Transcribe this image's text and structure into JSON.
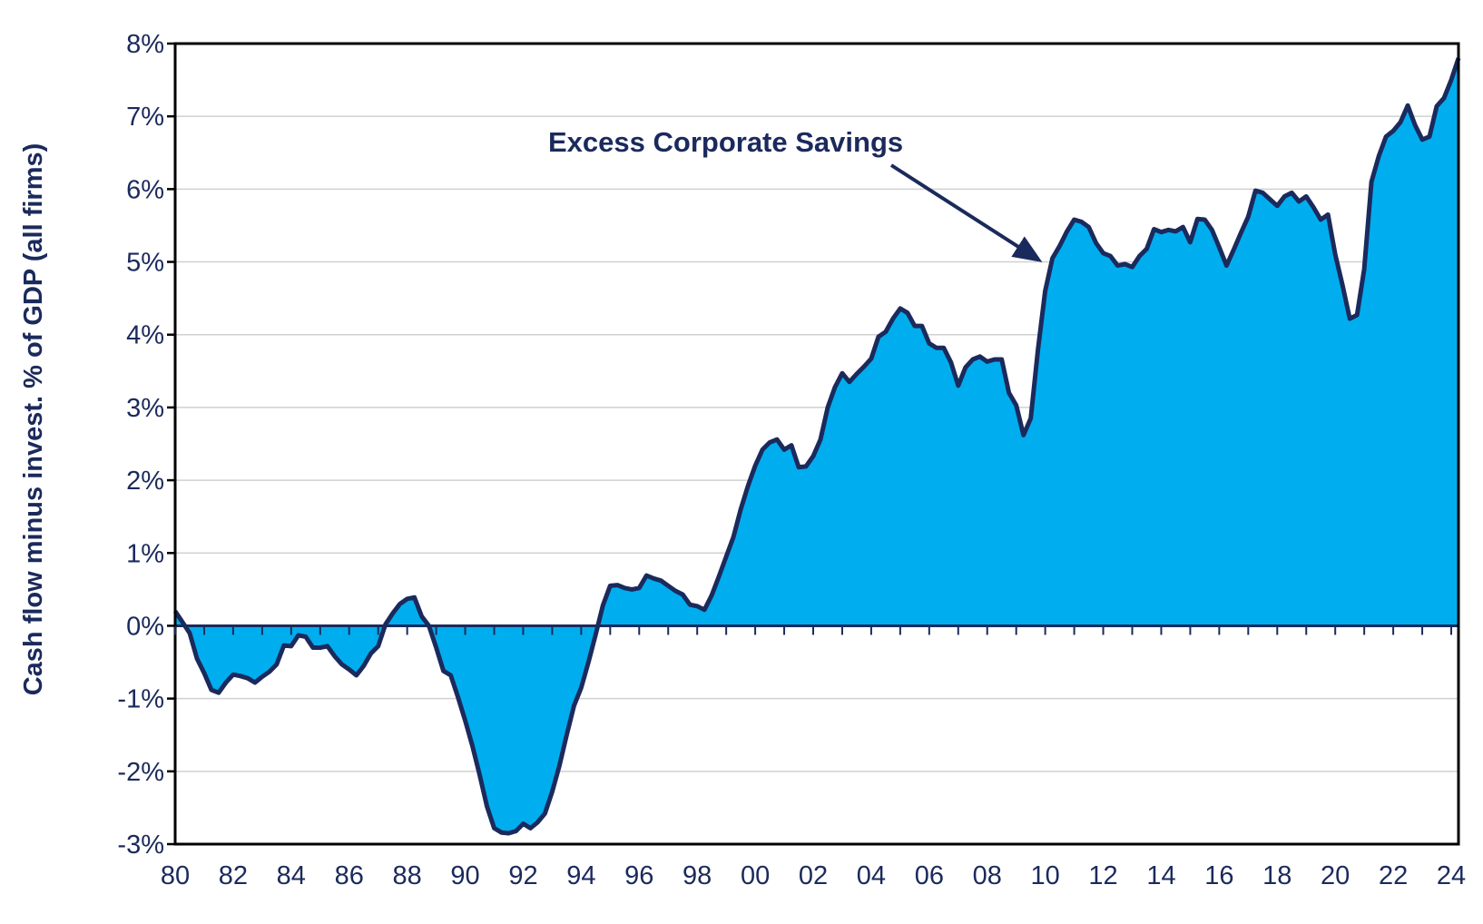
{
  "chart_data": {
    "type": "area",
    "title": "",
    "xlabel": "",
    "ylabel": "Cash flow minus invest. % of  GDP (all firms)",
    "ylim": [
      -3,
      8
    ],
    "xlim": [
      1980,
      2024.25
    ],
    "yticks": [
      -3,
      -2,
      -1,
      0,
      1,
      2,
      3,
      4,
      5,
      6,
      7,
      8
    ],
    "ytick_labels": [
      "-3%",
      "-2%",
      "-1%",
      "0%",
      "1%",
      "2%",
      "3%",
      "4%",
      "5%",
      "6%",
      "7%",
      "8%"
    ],
    "xticks": [
      1980,
      1982,
      1984,
      1986,
      1988,
      1990,
      1992,
      1994,
      1996,
      1998,
      2000,
      2002,
      2004,
      2006,
      2008,
      2010,
      2012,
      2014,
      2016,
      2018,
      2020,
      2022,
      2024
    ],
    "xtick_labels": [
      "80",
      "82",
      "84",
      "86",
      "88",
      "90",
      "92",
      "94",
      "96",
      "98",
      "00",
      "02",
      "04",
      "06",
      "08",
      "10",
      "12",
      "14",
      "16",
      "18",
      "20",
      "22",
      "24"
    ],
    "grid": true,
    "annotation": "Excess Corporate Savings",
    "series": [
      {
        "name": "Excess Corporate Savings",
        "color": "#00aeef",
        "line_color": "#1b2a5c",
        "points": [
          [
            1980.0,
            0.2
          ],
          [
            1980.25,
            0.05
          ],
          [
            1980.5,
            -0.1
          ],
          [
            1980.75,
            -0.45
          ],
          [
            1981.0,
            -0.65
          ],
          [
            1981.25,
            -0.88
          ],
          [
            1981.5,
            -0.92
          ],
          [
            1981.75,
            -0.78
          ],
          [
            1982.0,
            -0.67
          ],
          [
            1982.25,
            -0.69
          ],
          [
            1982.5,
            -0.72
          ],
          [
            1982.75,
            -0.78
          ],
          [
            1983.0,
            -0.7
          ],
          [
            1983.25,
            -0.63
          ],
          [
            1983.5,
            -0.53
          ],
          [
            1983.75,
            -0.27
          ],
          [
            1984.0,
            -0.28
          ],
          [
            1984.25,
            -0.13
          ],
          [
            1984.5,
            -0.15
          ],
          [
            1984.75,
            -0.3
          ],
          [
            1985.0,
            -0.3
          ],
          [
            1985.25,
            -0.28
          ],
          [
            1985.5,
            -0.42
          ],
          [
            1985.75,
            -0.53
          ],
          [
            1986.0,
            -0.6
          ],
          [
            1986.25,
            -0.68
          ],
          [
            1986.5,
            -0.55
          ],
          [
            1986.75,
            -0.38
          ],
          [
            1987.0,
            -0.28
          ],
          [
            1987.25,
            0.02
          ],
          [
            1987.5,
            0.17
          ],
          [
            1987.75,
            0.3
          ],
          [
            1988.0,
            0.37
          ],
          [
            1988.25,
            0.39
          ],
          [
            1988.5,
            0.13
          ],
          [
            1988.75,
            0.0
          ],
          [
            1989.0,
            -0.3
          ],
          [
            1989.25,
            -0.62
          ],
          [
            1989.5,
            -0.68
          ],
          [
            1989.75,
            -0.98
          ],
          [
            1990.0,
            -1.3
          ],
          [
            1990.25,
            -1.65
          ],
          [
            1990.5,
            -2.05
          ],
          [
            1990.75,
            -2.48
          ],
          [
            1991.0,
            -2.78
          ],
          [
            1991.25,
            -2.84
          ],
          [
            1991.5,
            -2.85
          ],
          [
            1991.75,
            -2.82
          ],
          [
            1992.0,
            -2.72
          ],
          [
            1992.25,
            -2.78
          ],
          [
            1992.5,
            -2.7
          ],
          [
            1992.75,
            -2.58
          ],
          [
            1993.0,
            -2.28
          ],
          [
            1993.25,
            -1.92
          ],
          [
            1993.5,
            -1.5
          ],
          [
            1993.75,
            -1.1
          ],
          [
            1994.0,
            -0.85
          ],
          [
            1994.25,
            -0.5
          ],
          [
            1994.5,
            -0.12
          ],
          [
            1994.75,
            0.28
          ],
          [
            1995.0,
            0.55
          ],
          [
            1995.25,
            0.56
          ],
          [
            1995.5,
            0.52
          ],
          [
            1995.75,
            0.5
          ],
          [
            1996.0,
            0.52
          ],
          [
            1996.25,
            0.69
          ],
          [
            1996.5,
            0.65
          ],
          [
            1996.75,
            0.62
          ],
          [
            1997.0,
            0.55
          ],
          [
            1997.25,
            0.48
          ],
          [
            1997.5,
            0.43
          ],
          [
            1997.75,
            0.29
          ],
          [
            1998.0,
            0.27
          ],
          [
            1998.25,
            0.22
          ],
          [
            1998.5,
            0.42
          ],
          [
            1998.75,
            0.68
          ],
          [
            1999.0,
            0.95
          ],
          [
            1999.25,
            1.22
          ],
          [
            1999.5,
            1.6
          ],
          [
            1999.75,
            1.92
          ],
          [
            2000.0,
            2.2
          ],
          [
            2000.25,
            2.42
          ],
          [
            2000.5,
            2.52
          ],
          [
            2000.75,
            2.56
          ],
          [
            2001.0,
            2.42
          ],
          [
            2001.25,
            2.48
          ],
          [
            2001.5,
            2.18
          ],
          [
            2001.75,
            2.19
          ],
          [
            2002.0,
            2.33
          ],
          [
            2002.25,
            2.56
          ],
          [
            2002.5,
            3.0
          ],
          [
            2002.75,
            3.28
          ],
          [
            2003.0,
            3.47
          ],
          [
            2003.25,
            3.35
          ],
          [
            2003.5,
            3.46
          ],
          [
            2003.75,
            3.56
          ],
          [
            2004.0,
            3.67
          ],
          [
            2004.25,
            3.97
          ],
          [
            2004.5,
            4.04
          ],
          [
            2004.75,
            4.22
          ],
          [
            2005.0,
            4.36
          ],
          [
            2005.25,
            4.3
          ],
          [
            2005.5,
            4.12
          ],
          [
            2005.75,
            4.12
          ],
          [
            2006.0,
            3.88
          ],
          [
            2006.25,
            3.82
          ],
          [
            2006.5,
            3.82
          ],
          [
            2006.75,
            3.62
          ],
          [
            2007.0,
            3.3
          ],
          [
            2007.25,
            3.55
          ],
          [
            2007.5,
            3.66
          ],
          [
            2007.75,
            3.7
          ],
          [
            2008.0,
            3.63
          ],
          [
            2008.25,
            3.66
          ],
          [
            2008.5,
            3.66
          ],
          [
            2008.75,
            3.2
          ],
          [
            2009.0,
            3.03
          ],
          [
            2009.25,
            2.62
          ],
          [
            2009.5,
            2.85
          ],
          [
            2009.75,
            3.8
          ],
          [
            2010.0,
            4.6
          ],
          [
            2010.25,
            5.05
          ],
          [
            2010.5,
            5.22
          ],
          [
            2010.75,
            5.42
          ],
          [
            2011.0,
            5.58
          ],
          [
            2011.25,
            5.55
          ],
          [
            2011.5,
            5.48
          ],
          [
            2011.75,
            5.26
          ],
          [
            2012.0,
            5.12
          ],
          [
            2012.25,
            5.08
          ],
          [
            2012.5,
            4.95
          ],
          [
            2012.75,
            4.97
          ],
          [
            2013.0,
            4.93
          ],
          [
            2013.25,
            5.08
          ],
          [
            2013.5,
            5.18
          ],
          [
            2013.75,
            5.45
          ],
          [
            2014.0,
            5.41
          ],
          [
            2014.25,
            5.44
          ],
          [
            2014.5,
            5.42
          ],
          [
            2014.75,
            5.48
          ],
          [
            2015.0,
            5.27
          ],
          [
            2015.25,
            5.59
          ],
          [
            2015.5,
            5.58
          ],
          [
            2015.75,
            5.44
          ],
          [
            2016.0,
            5.2
          ],
          [
            2016.25,
            4.95
          ],
          [
            2016.5,
            5.17
          ],
          [
            2016.75,
            5.4
          ],
          [
            2017.0,
            5.62
          ],
          [
            2017.25,
            5.98
          ],
          [
            2017.5,
            5.95
          ],
          [
            2017.75,
            5.86
          ],
          [
            2018.0,
            5.77
          ],
          [
            2018.25,
            5.9
          ],
          [
            2018.5,
            5.95
          ],
          [
            2018.75,
            5.83
          ],
          [
            2019.0,
            5.9
          ],
          [
            2019.25,
            5.75
          ],
          [
            2019.5,
            5.58
          ],
          [
            2019.75,
            5.65
          ],
          [
            2020.0,
            5.1
          ],
          [
            2020.25,
            4.68
          ],
          [
            2020.5,
            4.22
          ],
          [
            2020.75,
            4.27
          ],
          [
            2021.0,
            4.9
          ],
          [
            2021.25,
            6.1
          ],
          [
            2021.5,
            6.45
          ],
          [
            2021.75,
            6.72
          ],
          [
            2022.0,
            6.8
          ],
          [
            2022.25,
            6.92
          ],
          [
            2022.5,
            7.15
          ],
          [
            2022.75,
            6.88
          ],
          [
            2023.0,
            6.68
          ],
          [
            2023.25,
            6.72
          ],
          [
            2023.5,
            7.14
          ],
          [
            2023.75,
            7.25
          ],
          [
            2024.0,
            7.5
          ],
          [
            2024.25,
            7.8
          ]
        ]
      }
    ]
  }
}
